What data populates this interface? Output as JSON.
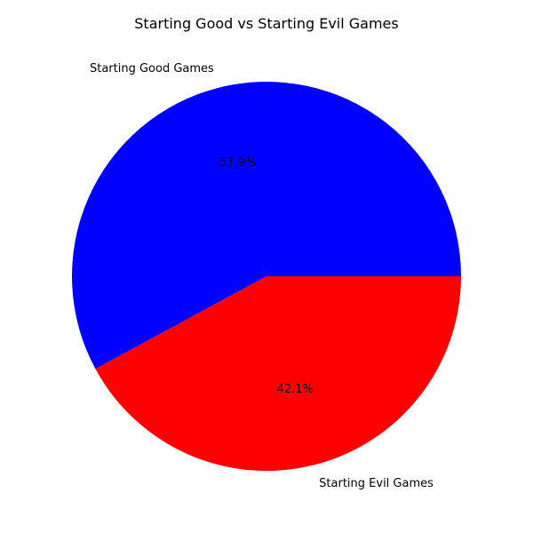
{
  "chart_data": {
    "type": "pie",
    "title": "Starting Good vs Starting Evil Games",
    "slices": [
      {
        "label": "Starting Good Games",
        "value": 57.9,
        "pct_label": "57.9%",
        "color": "#0000ff"
      },
      {
        "label": "Starting Evil Games",
        "value": 42.1,
        "pct_label": "42.1%",
        "color": "#ff0000"
      }
    ],
    "start_angle_deg": 0,
    "direction": "counterclockwise"
  }
}
